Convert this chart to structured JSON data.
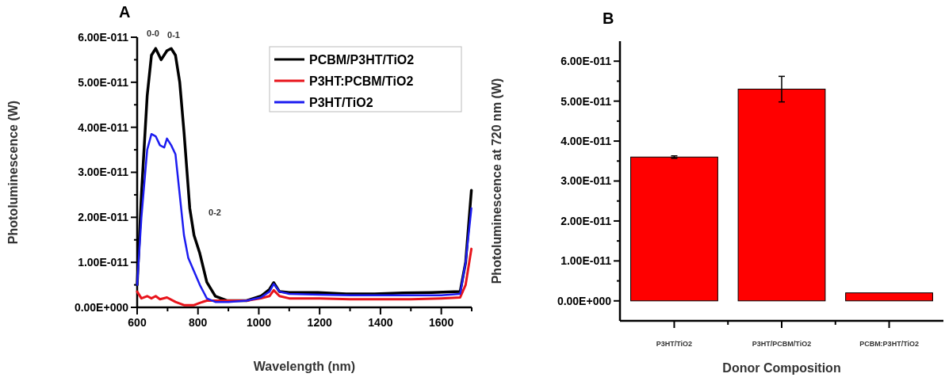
{
  "chart_data": [
    {
      "type": "line",
      "title": "A",
      "xlabel": "Wavelength (nm)",
      "ylabel": "Photoluminescence (W)",
      "xlim": [
        600,
        1700
      ],
      "ylim": [
        0,
        6e-11
      ],
      "xticks": [
        600,
        {
          "value": 700,
          "label": null
        },
        800,
        {
          "value": 900,
          "label": null
        },
        1000,
        {
          "value": 1100,
          "label": null
        },
        1200,
        {
          "value": 1300,
          "label": null
        },
        1400,
        {
          "value": 1500,
          "label": null
        },
        1600,
        {
          "value": 1700,
          "label": null
        }
      ],
      "yticks": [
        {
          "value": 0,
          "label": "0.00E+000"
        },
        {
          "value": 5e-12,
          "label": null
        },
        {
          "value": 1e-11,
          "label": "1.00E-011"
        },
        {
          "value": 1.5e-11,
          "label": null
        },
        {
          "value": 2e-11,
          "label": "2.00E-011"
        },
        {
          "value": 2.5e-11,
          "label": null
        },
        {
          "value": 3e-11,
          "label": "3.00E-011"
        },
        {
          "value": 3.5e-11,
          "label": null
        },
        {
          "value": 4e-11,
          "label": "4.00E-011"
        },
        {
          "value": 4.5e-11,
          "label": null
        },
        {
          "value": 5e-11,
          "label": "5.00E-011"
        },
        {
          "value": 5.5e-11,
          "label": null
        },
        {
          "value": 6e-11,
          "label": "6.00E-011"
        }
      ],
      "legend": "top right",
      "marker": "none",
      "line_style": "solid",
      "annotations": [
        "0-0",
        "0-1",
        "0-2"
      ],
      "series": [
        {
          "name": "PCBM/P3HT/TiO2",
          "color": "#000000",
          "x": [
            600,
            614,
            633,
            647,
            661,
            679,
            698,
            712,
            726,
            740,
            754,
            773,
            787,
            806,
            829,
            857,
            895,
            960,
            1007,
            1035,
            1049,
            1068,
            1100,
            1194,
            1287,
            1381,
            1474,
            1568,
            1662,
            1680,
            1699
          ],
          "values": [
            5e-12,
            2.5e-11,
            4.7e-11,
            5.6e-11,
            5.75e-11,
            5.5e-11,
            5.7e-11,
            5.75e-11,
            5.6e-11,
            5e-11,
            3.9e-11,
            2.2e-11,
            1.6e-11,
            1.2e-11,
            5.6e-12,
            2.5e-12,
            1.5e-12,
            1.5e-12,
            2.5e-12,
            4e-12,
            5.5e-12,
            3.5e-12,
            3.3e-12,
            3.3e-12,
            3e-12,
            3e-12,
            3.2e-12,
            3.3e-12,
            3.5e-12,
            1e-11,
            2.6e-11
          ]
        },
        {
          "name": "P3HT:PCBM/TiO2",
          "color": "#e8141b",
          "x": [
            600,
            614,
            633,
            647,
            661,
            675,
            698,
            726,
            754,
            787,
            806,
            829,
            857,
            900,
            960,
            1007,
            1035,
            1049,
            1068,
            1100,
            1200,
            1300,
            1400,
            1500,
            1600,
            1662,
            1680,
            1699
          ],
          "values": [
            3.5e-12,
            2e-12,
            2.5e-12,
            2e-12,
            2.5e-12,
            1.8e-12,
            2.2e-12,
            1.2e-12,
            5e-13,
            5e-13,
            1e-12,
            1.5e-12,
            1.5e-12,
            1.5e-12,
            1.5e-12,
            2e-12,
            2.5e-12,
            3.8e-12,
            2.5e-12,
            2e-12,
            2e-12,
            1.8e-12,
            1.8e-12,
            1.8e-12,
            2e-12,
            2.2e-12,
            5e-12,
            1.3e-11
          ]
        },
        {
          "name": "P3HT/TiO2",
          "color": "#1c1cf0",
          "x": [
            600,
            614,
            633,
            647,
            661,
            675,
            689,
            698,
            712,
            726,
            740,
            754,
            768,
            787,
            806,
            829,
            857,
            900,
            960,
            1007,
            1035,
            1049,
            1068,
            1100,
            1200,
            1300,
            1400,
            1500,
            1600,
            1662,
            1680,
            1699
          ],
          "values": [
            5e-12,
            2e-11,
            3.5e-11,
            3.85e-11,
            3.8e-11,
            3.6e-11,
            3.55e-11,
            3.75e-11,
            3.6e-11,
            3.4e-11,
            2.5e-11,
            1.6e-11,
            1.1e-11,
            8e-12,
            5e-12,
            2e-12,
            1.2e-12,
            1.2e-12,
            1.5e-12,
            2.2e-12,
            3.5e-12,
            5.2e-12,
            3.5e-12,
            3e-12,
            2.8e-12,
            2.7e-12,
            2.7e-12,
            2.7e-12,
            2.7e-12,
            3e-12,
            1e-11,
            2.2e-11
          ]
        }
      ]
    },
    {
      "type": "bar",
      "title": "B",
      "xlabel": "Donor Composition",
      "ylabel": "Photoluminescence at 720 nm (W)",
      "categories": [
        "P3HT/TiO2",
        "P3HT/PCBM/TiO2",
        "PCBM:P3HT/TiO2"
      ],
      "values": [
        3.6e-11,
        5.3e-11,
        2e-12
      ],
      "errors": [
        3e-13,
        3.2e-12,
        null
      ],
      "color": "#ff0000",
      "ylim": [
        -5e-12,
        6.5e-11
      ],
      "yticks": [
        {
          "value": 0,
          "label": "0.00E+000"
        },
        {
          "value": 5e-12,
          "label": null
        },
        {
          "value": 1e-11,
          "label": "1.00E-011"
        },
        {
          "value": 1.5e-11,
          "label": null
        },
        {
          "value": 2e-11,
          "label": "2.00E-011"
        },
        {
          "value": 2.5e-11,
          "label": null
        },
        {
          "value": 3e-11,
          "label": "3.00E-011"
        },
        {
          "value": 3.5e-11,
          "label": null
        },
        {
          "value": 4e-11,
          "label": "4.00E-011"
        },
        {
          "value": 4.5e-11,
          "label": null
        },
        {
          "value": 5e-11,
          "label": "5.00E-011"
        },
        {
          "value": 5.5e-11,
          "label": null
        },
        {
          "value": 6e-11,
          "label": "6.00E-011"
        }
      ]
    }
  ]
}
